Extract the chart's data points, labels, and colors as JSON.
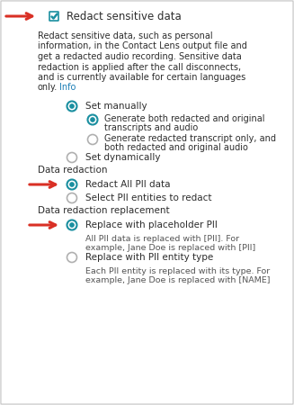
{
  "bg_color": "#f0f0f0",
  "panel_color": "#ffffff",
  "border_color": "#c8c8c8",
  "text_color": "#2d2d2d",
  "light_text_color": "#555555",
  "link_color": "#1a7db5",
  "radio_fill_color": "#1a8fa0",
  "radio_empty_border": "#b0b0b0",
  "arrow_color": "#d93025",
  "checkbox_color": "#1a8fa0",
  "title": "Redact sensitive data",
  "desc_lines": [
    "Redact sensitive data, such as personal",
    "information, in the Contact Lens output file and",
    "get a redacted audio recording. Sensitive data",
    "redaction is applied after the call disconnects,",
    "and is currently available for certain languages",
    "only."
  ],
  "link_text": "Info",
  "items": [
    {
      "type": "radio",
      "label": "Set manually",
      "selected": true,
      "indent": 1,
      "arrow": false
    },
    {
      "type": "radio",
      "label": "Generate both redacted and original",
      "label2": "transcripts and audio",
      "selected": true,
      "indent": 2,
      "arrow": false
    },
    {
      "type": "radio",
      "label": "Generate redacted transcript only, and",
      "label2": "both redacted and original audio",
      "selected": false,
      "indent": 2,
      "arrow": false
    },
    {
      "type": "radio",
      "label": "Set dynamically",
      "selected": false,
      "indent": 1,
      "arrow": false
    },
    {
      "type": "section",
      "label": "Data redaction"
    },
    {
      "type": "radio",
      "label": "Redact All PII data",
      "selected": true,
      "indent": 1,
      "arrow": true
    },
    {
      "type": "radio",
      "label": "Select PII entities to redact",
      "selected": false,
      "indent": 1,
      "arrow": false
    },
    {
      "type": "section",
      "label": "Data redaction replacement"
    },
    {
      "type": "radio",
      "label": "Replace with placeholder PII",
      "selected": true,
      "indent": 1,
      "arrow": true
    },
    {
      "type": "desc",
      "label": "All PII data is replaced with [PII]. For",
      "label2": "example, Jane Doe is replaced with [PII]",
      "indent": 1
    },
    {
      "type": "radio",
      "label": "Replace with PII entity type",
      "selected": false,
      "indent": 1,
      "arrow": false
    },
    {
      "type": "desc",
      "label": "Each PII entity is replaced with its type. For",
      "label2": "example, Jane Doe is replaced with [NAME]",
      "indent": 1
    }
  ]
}
